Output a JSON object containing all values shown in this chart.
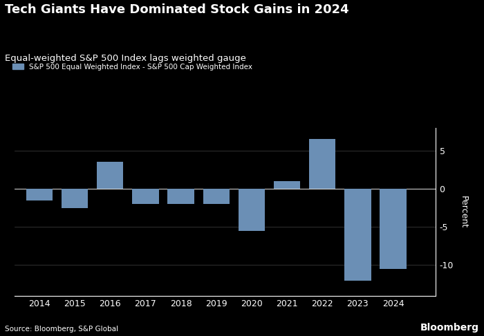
{
  "title": "Tech Giants Have Dominated Stock Gains in 2024",
  "subtitle": "Equal-weighted S&P 500 Index lags weighted gauge",
  "legend_label": "S&P 500 Equal Weighted Index - S&P 500 Cap Weighted Index",
  "ylabel": "Percent",
  "source": "Source: Bloomberg, S&P Global",
  "watermark": "Bloomberg",
  "years": [
    2014,
    2015,
    2016,
    2017,
    2018,
    2019,
    2020,
    2021,
    2022,
    2023,
    2024
  ],
  "values": [
    -1.5,
    -2.5,
    3.5,
    -2.0,
    -2.0,
    -2.0,
    -5.5,
    1.0,
    6.5,
    -12.0,
    -10.5
  ],
  "bar_color": "#6b8fb5",
  "bg_color": "#000000",
  "text_color": "#ffffff",
  "grid_color": "#444444",
  "ylim": [
    -14,
    8
  ],
  "yticks": [
    -10,
    -5,
    0,
    5
  ]
}
